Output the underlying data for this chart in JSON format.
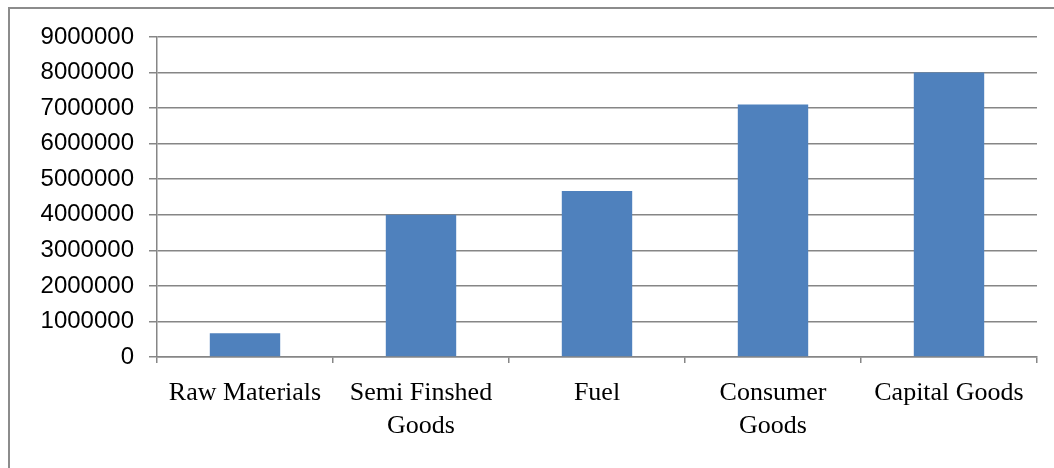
{
  "chart_data": {
    "type": "bar",
    "categories": [
      "Raw Materials",
      "Semi Finshed Goods",
      "Fuel",
      "Consumer Goods",
      "Capital Goods"
    ],
    "values": [
      670000,
      4000000,
      4670000,
      7100000,
      8000000
    ],
    "color": "#4f81bd",
    "ylim": [
      0,
      9000000
    ],
    "yticks": [
      0,
      1000000,
      2000000,
      3000000,
      4000000,
      5000000,
      6000000,
      7000000,
      8000000,
      9000000
    ],
    "grid": "y"
  }
}
